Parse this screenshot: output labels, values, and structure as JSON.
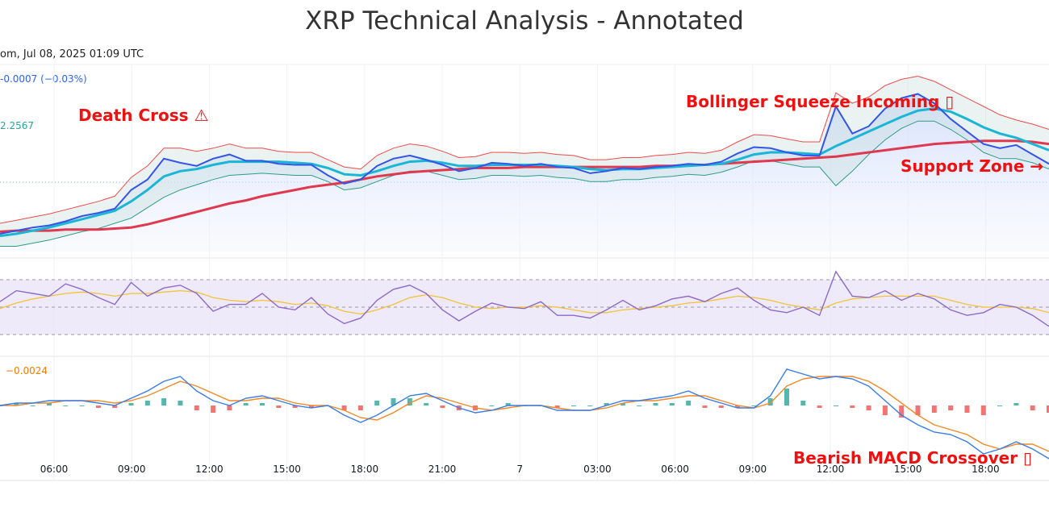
{
  "title": "XRP Technical Analysis - Annotated",
  "header": {
    "timestamp": "om, Jul 08, 2025 01:09 UTC",
    "price_change": "-0.0007 (−0.03%)",
    "ma_value": "2.2567",
    "macd_value": "−0.0024"
  },
  "annotations": {
    "death_cross": "Death Cross ⚠",
    "bollinger": "Bollinger Squeeze Incoming ▯",
    "support": "Support Zone →",
    "macd": "Bearish MACD Crossover ▯"
  },
  "colors": {
    "price": "#3554e6",
    "ema": "#1bb5d6",
    "sma": "#e0384f",
    "bb_upper": "#f04a4a",
    "bb_lower": "#2e9c8c",
    "rsi": "#8c6bc8",
    "rsi_ma": "#f2c33a",
    "macd": "#3a7de8",
    "signal": "#f08a26",
    "hist_up": "#26a69a",
    "hist_down": "#ef5350"
  },
  "chart_data": {
    "type": "line",
    "x_ticks": [
      "06:00",
      "09:00",
      "12:00",
      "15:00",
      "18:00",
      "21:00",
      "7",
      "03:00",
      "06:00",
      "09:00",
      "12:00",
      "15:00",
      "18:00"
    ],
    "x": [
      0,
      1,
      2,
      3,
      4,
      5,
      6,
      7,
      8,
      9,
      10,
      11,
      12,
      13,
      14,
      15,
      16,
      17,
      18,
      19,
      20,
      21,
      22,
      23,
      24,
      25,
      26,
      27,
      28,
      29,
      30,
      31,
      32,
      33,
      34,
      35,
      36,
      37,
      38,
      39,
      40,
      41,
      42,
      43,
      44,
      45,
      46,
      47,
      48,
      49,
      50,
      51,
      52,
      53,
      54,
      55,
      56,
      57,
      58,
      59,
      60,
      61,
      62,
      63,
      64
    ],
    "panels": [
      {
        "name": "price",
        "series": [
          {
            "role": "price",
            "values": [
              2.18,
              2.183,
              2.186,
              2.188,
              2.192,
              2.197,
              2.2,
              2.204,
              2.222,
              2.232,
              2.252,
              2.248,
              2.245,
              2.252,
              2.256,
              2.25,
              2.25,
              2.247,
              2.246,
              2.246,
              2.236,
              2.228,
              2.232,
              2.245,
              2.252,
              2.255,
              2.251,
              2.246,
              2.24,
              2.243,
              2.248,
              2.247,
              2.245,
              2.247,
              2.244,
              2.243,
              2.238,
              2.24,
              2.243,
              2.242,
              2.244,
              2.245,
              2.247,
              2.246,
              2.249,
              2.257,
              2.263,
              2.262,
              2.258,
              2.255,
              2.255,
              2.302,
              2.276,
              2.283,
              2.3,
              2.31,
              2.314,
              2.305,
              2.29,
              2.278,
              2.266,
              2.262,
              2.265,
              2.256,
              2.247
            ]
          },
          {
            "role": "ema",
            "values": [
              2.178,
              2.18,
              2.183,
              2.186,
              2.19,
              2.194,
              2.198,
              2.202,
              2.211,
              2.222,
              2.235,
              2.24,
              2.242,
              2.246,
              2.249,
              2.249,
              2.249,
              2.249,
              2.248,
              2.247,
              2.243,
              2.237,
              2.236,
              2.24,
              2.245,
              2.249,
              2.25,
              2.248,
              2.245,
              2.245,
              2.246,
              2.246,
              2.246,
              2.246,
              2.245,
              2.244,
              2.242,
              2.241,
              2.242,
              2.242,
              2.243,
              2.244,
              2.245,
              2.246,
              2.247,
              2.251,
              2.256,
              2.258,
              2.258,
              2.257,
              2.256,
              2.264,
              2.271,
              2.278,
              2.285,
              2.292,
              2.298,
              2.3,
              2.297,
              2.29,
              2.282,
              2.276,
              2.272,
              2.266,
              2.26
            ]
          },
          {
            "role": "sma",
            "values": [
              2.182,
              2.183,
              2.183,
              2.183,
              2.184,
              2.184,
              2.184,
              2.185,
              2.186,
              2.189,
              2.193,
              2.197,
              2.201,
              2.205,
              2.209,
              2.212,
              2.216,
              2.219,
              2.222,
              2.225,
              2.227,
              2.229,
              2.232,
              2.235,
              2.237,
              2.239,
              2.24,
              2.241,
              2.242,
              2.243,
              2.243,
              2.243,
              2.244,
              2.244,
              2.244,
              2.244,
              2.244,
              2.244,
              2.244,
              2.244,
              2.245,
              2.245,
              2.246,
              2.246,
              2.247,
              2.248,
              2.249,
              2.25,
              2.251,
              2.252,
              2.253,
              2.254,
              2.256,
              2.258,
              2.26,
              2.262,
              2.264,
              2.266,
              2.267,
              2.268,
              2.269,
              2.269,
              2.269,
              2.268,
              2.266
            ]
          },
          {
            "role": "bb_upper",
            "values": [
              2.19,
              2.193,
              2.196,
              2.199,
              2.203,
              2.207,
              2.211,
              2.216,
              2.234,
              2.245,
              2.262,
              2.262,
              2.259,
              2.262,
              2.266,
              2.262,
              2.262,
              2.259,
              2.258,
              2.258,
              2.251,
              2.244,
              2.242,
              2.255,
              2.262,
              2.266,
              2.264,
              2.259,
              2.253,
              2.254,
              2.258,
              2.258,
              2.257,
              2.258,
              2.256,
              2.255,
              2.251,
              2.251,
              2.253,
              2.253,
              2.255,
              2.256,
              2.258,
              2.257,
              2.26,
              2.268,
              2.275,
              2.274,
              2.271,
              2.268,
              2.268,
              2.315,
              2.305,
              2.311,
              2.322,
              2.328,
              2.331,
              2.326,
              2.318,
              2.31,
              2.302,
              2.294,
              2.289,
              2.285,
              2.28
            ]
          },
          {
            "role": "bb_lower",
            "values": [
              2.168,
              2.168,
              2.171,
              2.174,
              2.178,
              2.182,
              2.185,
              2.19,
              2.195,
              2.205,
              2.215,
              2.222,
              2.227,
              2.232,
              2.236,
              2.237,
              2.238,
              2.237,
              2.236,
              2.236,
              2.23,
              2.222,
              2.224,
              2.23,
              2.236,
              2.24,
              2.24,
              2.236,
              2.232,
              2.233,
              2.236,
              2.236,
              2.235,
              2.236,
              2.234,
              2.233,
              2.23,
              2.23,
              2.232,
              2.232,
              2.234,
              2.235,
              2.237,
              2.236,
              2.239,
              2.244,
              2.25,
              2.25,
              2.247,
              2.244,
              2.244,
              2.226,
              2.24,
              2.256,
              2.27,
              2.281,
              2.288,
              2.288,
              2.28,
              2.27,
              2.258,
              2.252,
              2.252,
              2.248,
              2.242
            ]
          }
        ]
      },
      {
        "name": "rsi",
        "ylim": [
          20,
          80
        ],
        "levels": [
          70,
          50,
          30
        ],
        "series": [
          {
            "role": "rsi",
            "values": [
              54,
              62,
              60,
              58,
              67,
              63,
              57,
              52,
              68,
              58,
              64,
              66,
              60,
              47,
              52,
              52,
              60,
              50,
              48,
              57,
              45,
              38,
              42,
              55,
              63,
              66,
              60,
              48,
              40,
              47,
              53,
              50,
              49,
              54,
              44,
              44,
              42,
              48,
              55,
              48,
              51,
              56,
              58,
              54,
              60,
              64,
              55,
              48,
              46,
              50,
              44,
              76,
              58,
              57,
              62,
              55,
              60,
              56,
              48,
              44,
              46,
              52,
              50,
              44,
              36
            ]
          },
          {
            "role": "rsi_ma",
            "values": [
              49,
              53,
              56,
              58,
              60,
              61,
              60,
              58,
              60,
              60,
              61,
              62,
              61,
              57,
              55,
              54,
              55,
              54,
              52,
              53,
              51,
              47,
              45,
              48,
              52,
              57,
              59,
              57,
              53,
              50,
              49,
              50,
              50,
              51,
              50,
              48,
              46,
              46,
              48,
              49,
              50,
              51,
              53,
              54,
              56,
              58,
              57,
              55,
              52,
              50,
              48,
              53,
              56,
              57,
              58,
              58,
              58,
              58,
              55,
              52,
              50,
              50,
              50,
              49,
              46
            ]
          }
        ]
      },
      {
        "name": "macd",
        "series": [
          {
            "role": "macd",
            "values": [
              0.0,
              0.001,
              0.001,
              0.002,
              0.002,
              0.002,
              0.001,
              0.0,
              0.003,
              0.006,
              0.01,
              0.012,
              0.006,
              0.002,
              0.0,
              0.003,
              0.004,
              0.002,
              0.0,
              -0.001,
              0.0,
              -0.004,
              -0.007,
              -0.004,
              0.0,
              0.004,
              0.005,
              0.002,
              -0.001,
              -0.003,
              -0.002,
              0.0,
              0.0,
              0.0,
              -0.002,
              -0.002,
              -0.002,
              0.0,
              0.002,
              0.002,
              0.003,
              0.004,
              0.006,
              0.003,
              0.001,
              -0.001,
              -0.001,
              0.004,
              0.015,
              0.013,
              0.011,
              0.012,
              0.011,
              0.008,
              0.002,
              -0.004,
              -0.008,
              -0.011,
              -0.012,
              -0.015,
              -0.02,
              -0.018,
              -0.015,
              -0.018,
              -0.022
            ]
          },
          {
            "role": "signal",
            "values": [
              0.0,
              0.0,
              0.001,
              0.001,
              0.002,
              0.002,
              0.002,
              0.001,
              0.002,
              0.004,
              0.007,
              0.01,
              0.008,
              0.005,
              0.002,
              0.002,
              0.003,
              0.003,
              0.001,
              0.0,
              0.0,
              -0.002,
              -0.005,
              -0.006,
              -0.003,
              0.001,
              0.004,
              0.003,
              0.001,
              -0.001,
              -0.002,
              -0.001,
              0.0,
              0.0,
              -0.001,
              -0.002,
              -0.002,
              -0.001,
              0.001,
              0.002,
              0.002,
              0.003,
              0.004,
              0.004,
              0.002,
              0.0,
              -0.001,
              0.001,
              0.008,
              0.011,
              0.012,
              0.012,
              0.012,
              0.01,
              0.006,
              0.001,
              -0.004,
              -0.008,
              -0.01,
              -0.012,
              -0.016,
              -0.018,
              -0.016,
              -0.016,
              -0.019
            ]
          }
        ]
      }
    ]
  }
}
